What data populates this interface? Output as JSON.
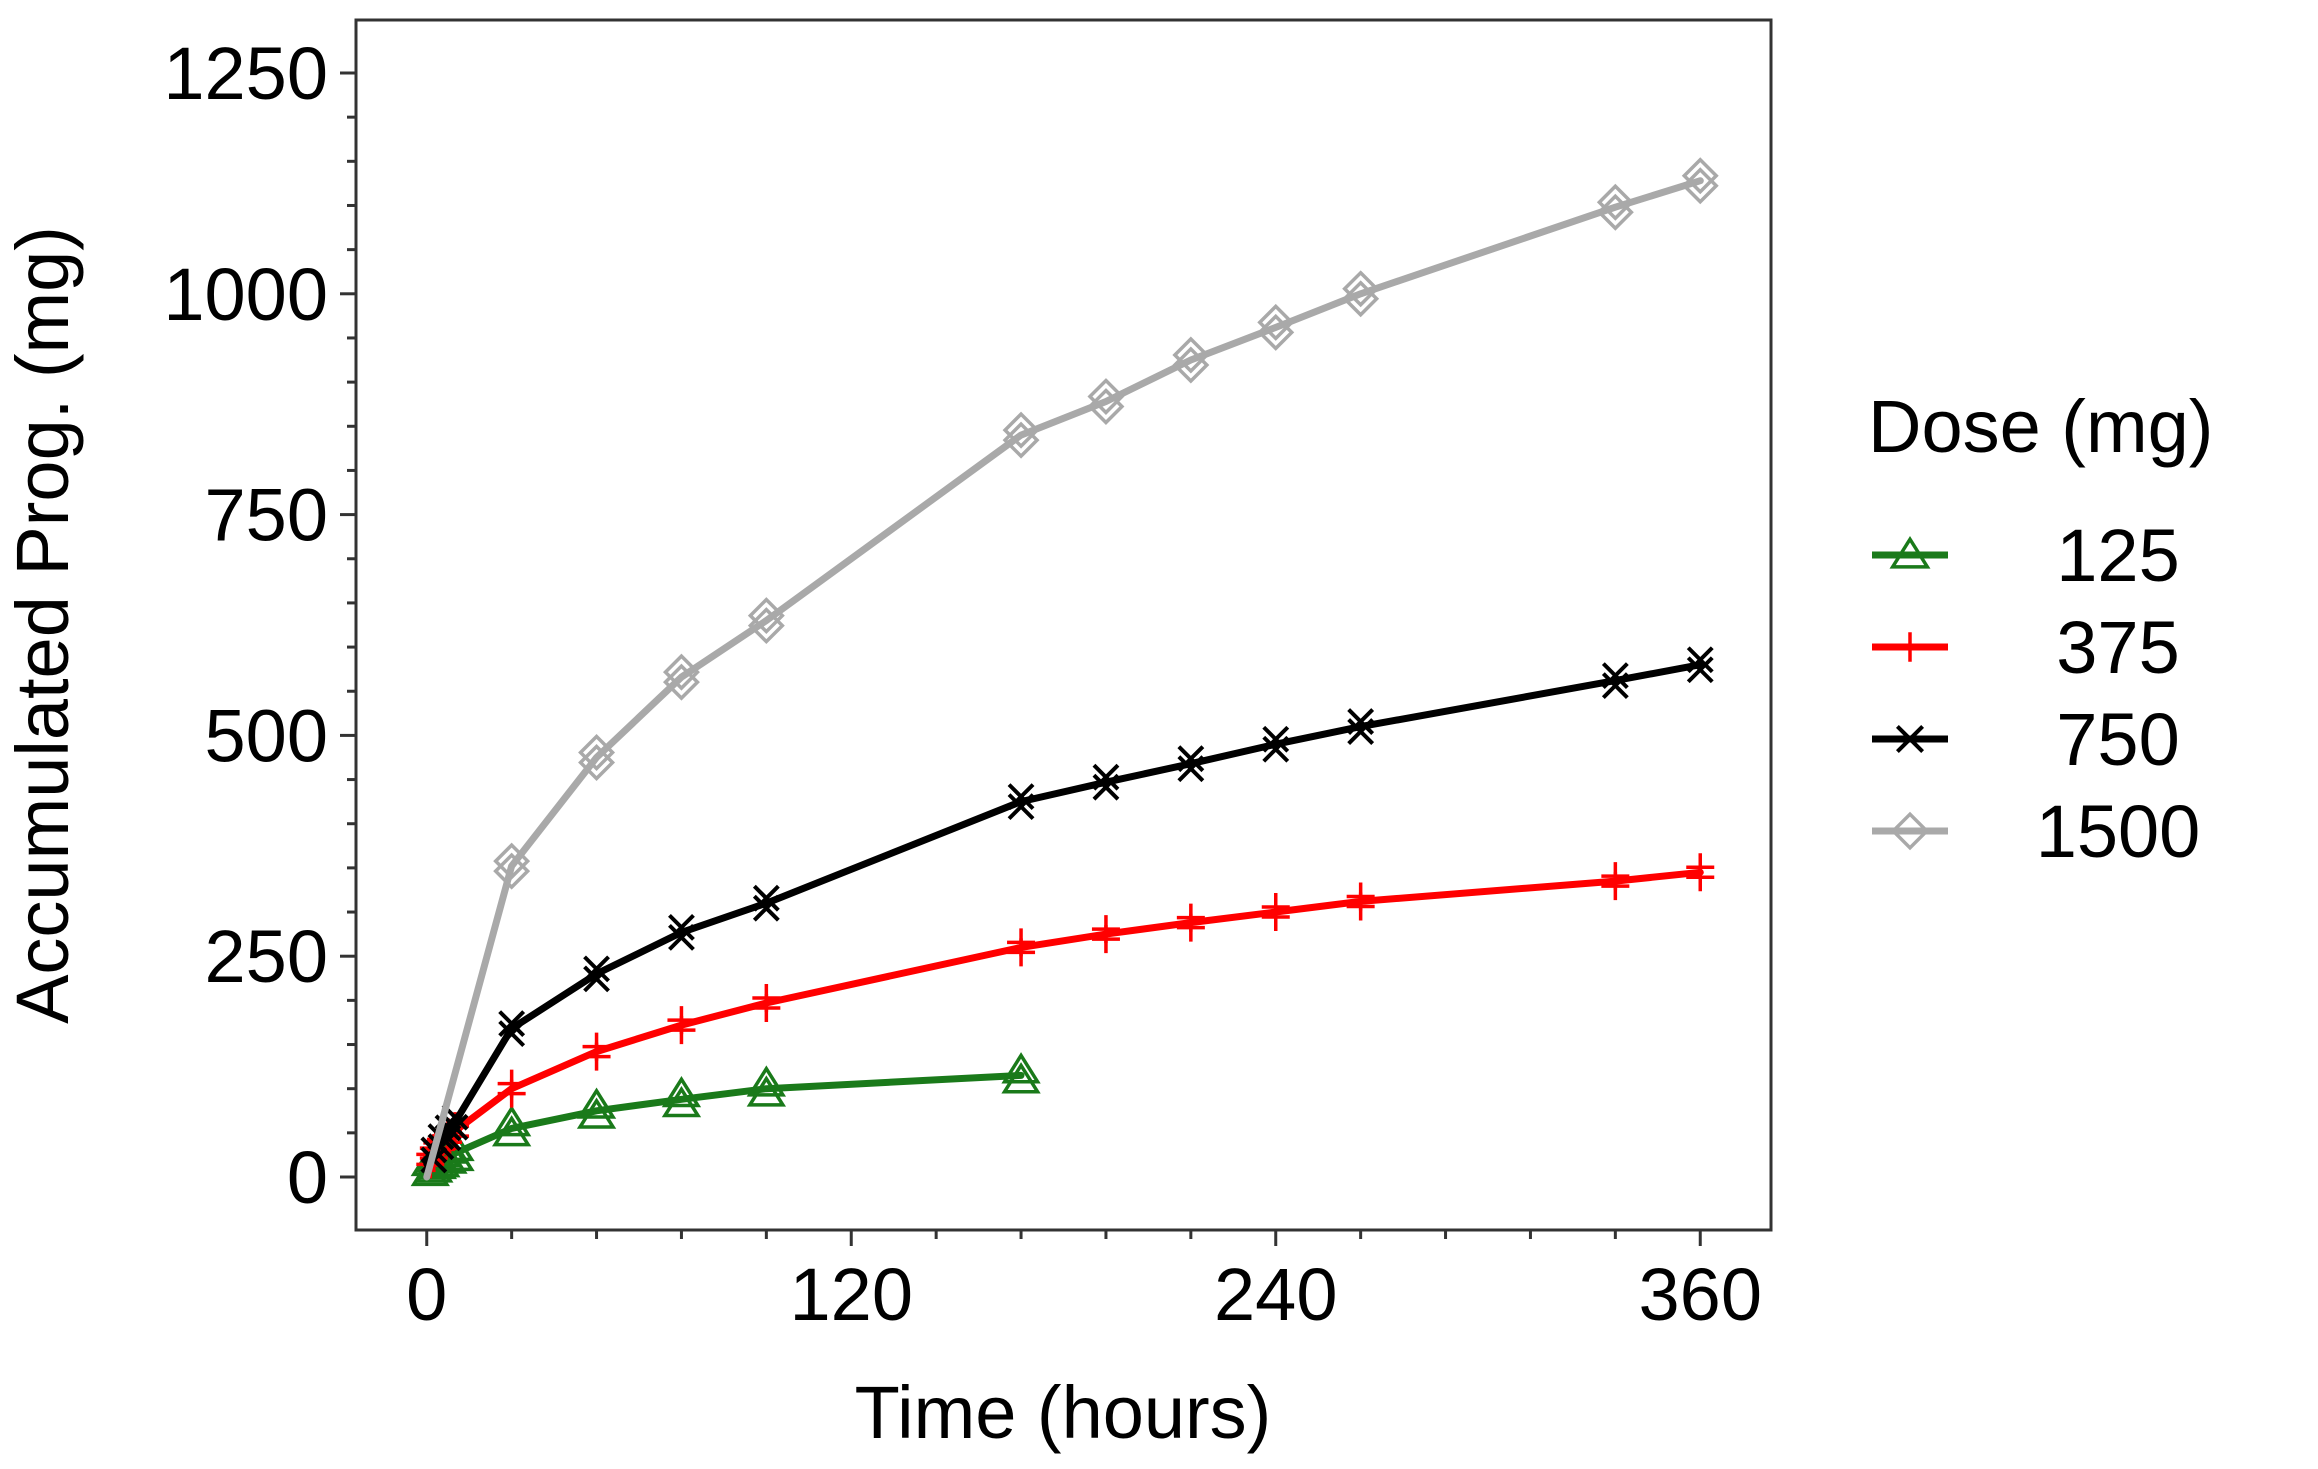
{
  "chart_data": {
    "type": "line",
    "xlabel": "Time (hours)",
    "ylabel": "Accumulated Prog. (mg)",
    "xlim": [
      -20,
      380
    ],
    "ylim": [
      -60,
      1310
    ],
    "xticks": [
      0,
      120,
      240,
      360
    ],
    "yticks": [
      0,
      250,
      500,
      750,
      1000,
      1250
    ],
    "x_minor_step": 24,
    "y_minor_step": 50,
    "legend": {
      "title": "Dose (mg)",
      "position": "right"
    },
    "series": [
      {
        "name": "125",
        "color": "#1a7a1a",
        "marker": "triangle",
        "x": [
          1,
          2,
          3,
          4,
          6,
          8,
          24,
          48,
          72,
          96,
          168
        ],
        "values": [
          10,
          14,
          18,
          20,
          24,
          27,
          55,
          75,
          88,
          100,
          115
        ]
      },
      {
        "name": "375",
        "color": "#ff0000",
        "marker": "plus",
        "x": [
          1,
          2,
          3,
          4,
          6,
          8,
          24,
          48,
          72,
          96,
          168,
          192,
          216,
          240,
          264,
          336,
          360
        ],
        "values": [
          20,
          27,
          33,
          37,
          45,
          52,
          100,
          142,
          172,
          197,
          260,
          275,
          288,
          300,
          312,
          335,
          345
        ]
      },
      {
        "name": "750",
        "color": "#000000",
        "marker": "x",
        "x": [
          2,
          4,
          6,
          8,
          24,
          48,
          72,
          96,
          168,
          192,
          216,
          240,
          264,
          336,
          360
        ],
        "values": [
          25,
          40,
          50,
          62,
          168,
          230,
          277,
          310,
          425,
          447,
          468,
          490,
          510,
          562,
          580
        ]
      },
      {
        "name": "1500",
        "color": "#a9a9a9",
        "marker": "diamond",
        "x": [
          24,
          48,
          72,
          96,
          168,
          192,
          216,
          240,
          264,
          336,
          360
        ],
        "values": [
          352,
          475,
          566,
          630,
          840,
          878,
          925,
          962,
          1000,
          1098,
          1128
        ]
      }
    ]
  }
}
